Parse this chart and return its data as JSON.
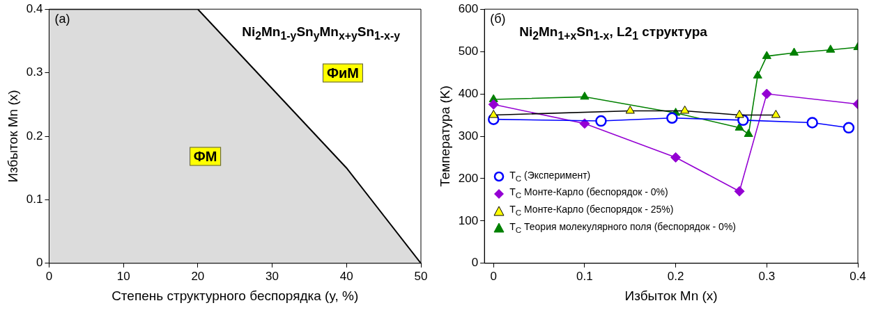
{
  "chart_data": [
    {
      "type": "area",
      "title": "Ni$_{2}$Mn$_{1-y}$Sn$_{y}$Mn$_{x+y}$Sn$_{1-x-y}$",
      "xlabel": "Степень структурного беспорядка (y, %)",
      "ylabel": "Избыток Mn (x)",
      "x": [
        0,
        20,
        40,
        50
      ],
      "values": [
        0.4,
        0.4,
        0.15,
        0
      ],
      "color": "#dcdcdc",
      "xlim": [
        0,
        50
      ],
      "xticks": [
        0,
        10,
        20,
        30,
        40,
        50
      ],
      "ylim": [
        0,
        0.4
      ],
      "yticks": [
        0,
        0.1,
        0.2,
        0.3,
        0.4
      ],
      "annotations": [
        "(a)",
        "ФиМ",
        "ФМ"
      ]
    },
    {
      "type": "line",
      "title": "Ni$_{2}$Mn$_{1+x}$Sn$_{1-x}$,  L2$_{1}$ структура",
      "xlabel": "Избыток Mn (x)",
      "ylabel": "Температура (K)",
      "xlim": [
        -0.01,
        0.4
      ],
      "xticks": [
        0,
        0.1,
        0.2,
        0.3,
        0.4
      ],
      "ylim": [
        0,
        600
      ],
      "yticks": [
        0,
        100,
        200,
        300,
        400,
        500,
        600
      ],
      "legend": "bottom left",
      "annotations": [
        "(б)"
      ],
      "series": [
        {
          "name": "T$_{C}$ (Эксперимент)",
          "color": "#0000ff",
          "marker": "circle",
          "x": [
            0,
            0.118,
            0.196,
            0.274,
            0.35,
            0.39
          ],
          "values": [
            340,
            336,
            343,
            338,
            332,
            320
          ]
        },
        {
          "name": "T$_{C}$  Монте-Карло (беспорядок - 0%)",
          "color": "#9400d3",
          "marker": "diamond",
          "x": [
            0,
            0.1,
            0.2,
            0.27,
            0.3,
            0.4
          ],
          "values": [
            375,
            330,
            250,
            170,
            400,
            376
          ]
        },
        {
          "name": "T$_{C}$  Монте-Карло (беспорядок - 25%)",
          "color": "#ffff00",
          "marker": "triangle",
          "x": [
            0,
            0.15,
            0.21,
            0.27,
            0.31
          ],
          "values": [
            350,
            360,
            360,
            350,
            350
          ]
        },
        {
          "name": "T$_{C}$ Теория молекулярного поля (беспорядок - 0%)",
          "color": "#008000",
          "marker": "triangle",
          "x": [
            0,
            0.1,
            0.2,
            0.27,
            0.28,
            0.29,
            0.3,
            0.33,
            0.37,
            0.4
          ],
          "values": [
            387,
            393,
            355,
            320,
            305,
            443,
            489,
            497,
            504,
            510
          ]
        }
      ]
    }
  ]
}
